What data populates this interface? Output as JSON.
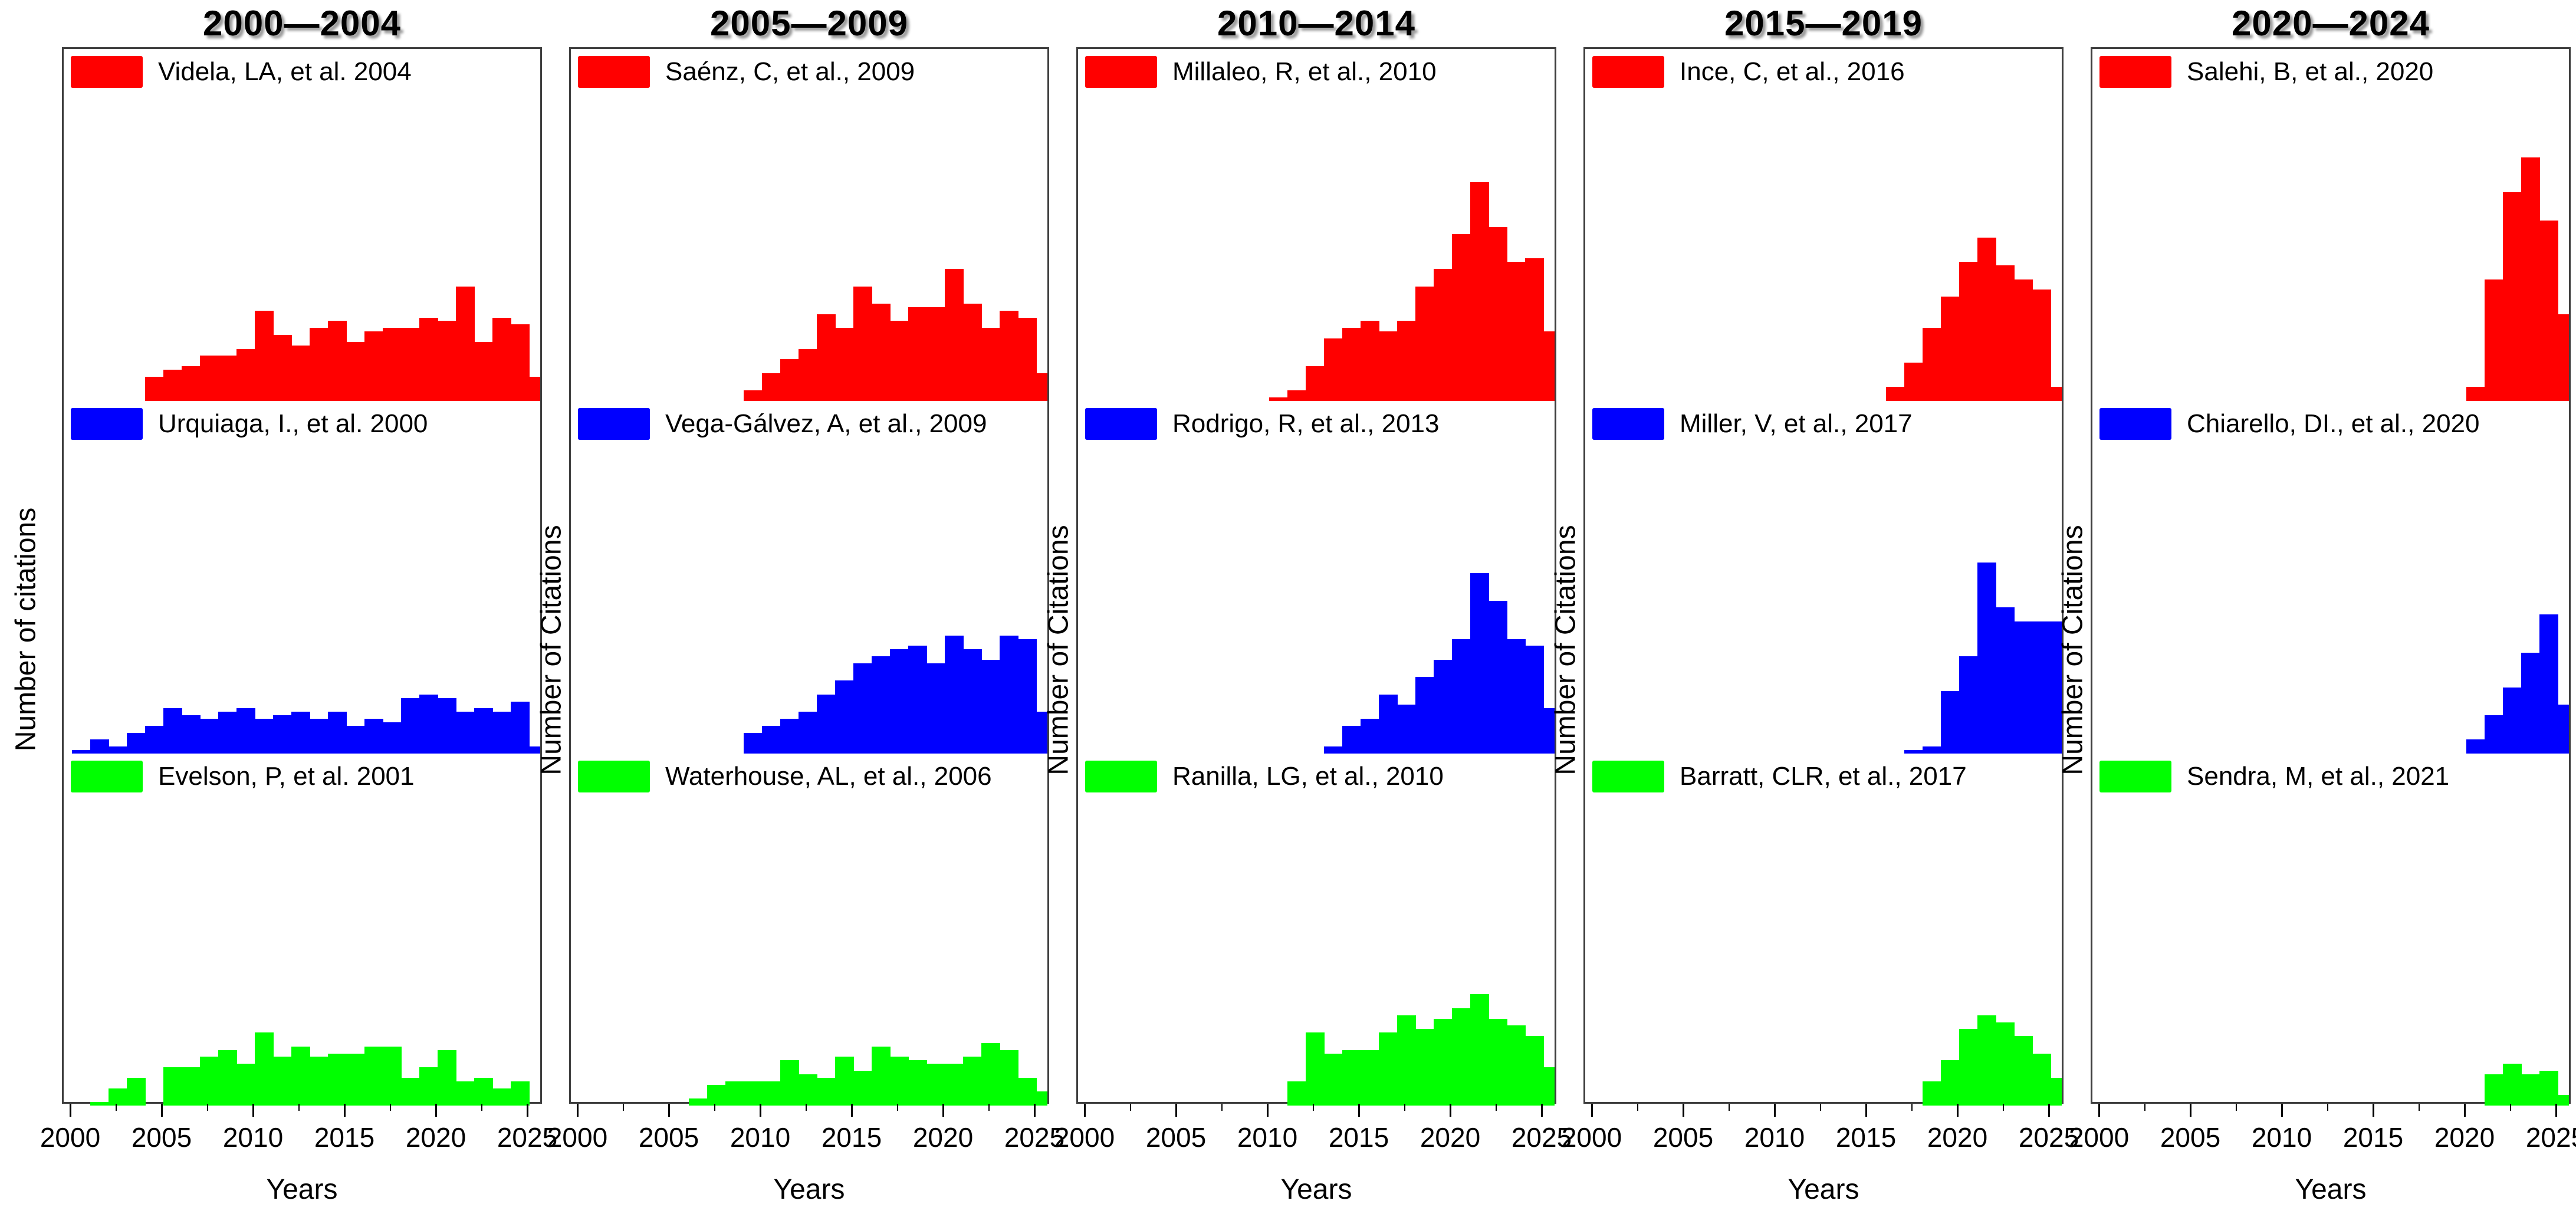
{
  "figure": {
    "background": "#ffffff",
    "border_color": "#3f3f3f"
  },
  "y_axis": {
    "main_label": "Number of citations",
    "column_label": "Number of Citations"
  },
  "x_axis": {
    "label": "Years",
    "ticks": [
      2000,
      2005,
      2010,
      2015,
      2020,
      2025
    ],
    "minor_ticks": [
      2002.5,
      2007.5,
      2012.5,
      2017.5,
      2022.5
    ],
    "range": [
      2000,
      2026
    ]
  },
  "colors": {
    "red": "#ff0000",
    "blue": "#0000ff",
    "green": "#00ff00"
  },
  "value_note": "Bar values are relative heights (fraction of subplot height); no numeric y-axis scale is shown in the figure.",
  "chart_data": [
    {
      "type": "bar",
      "period": "2000—2004",
      "xlabel": "Years",
      "x_range": [
        2000,
        2026
      ],
      "series": [
        {
          "name": "Videla, LA, et al. 2004",
          "color": "#ff0000",
          "start_year": 2004,
          "values": [
            0.07,
            0.09,
            0.1,
            0.13,
            0.13,
            0.15,
            0.26,
            0.19,
            0.16,
            0.21,
            0.23,
            0.17,
            0.2,
            0.21,
            0.21,
            0.24,
            0.23,
            0.33,
            0.17,
            0.24,
            0.22,
            0.07
          ]
        },
        {
          "name": "Urquiaga, I., et al. 2000",
          "color": "#0000ff",
          "start_year": 2000,
          "values": [
            0.01,
            0.04,
            0.02,
            0.06,
            0.08,
            0.13,
            0.11,
            0.1,
            0.12,
            0.13,
            0.1,
            0.11,
            0.12,
            0.1,
            0.12,
            0.08,
            0.1,
            0.09,
            0.16,
            0.17,
            0.16,
            0.12,
            0.13,
            0.12,
            0.15,
            0.02
          ]
        },
        {
          "name": "Evelson, P, et al. 2001",
          "color": "#00ff00",
          "start_year": 2001,
          "values": [
            0.01,
            0.05,
            0.08,
            0.0,
            0.11,
            0.11,
            0.14,
            0.16,
            0.12,
            0.21,
            0.14,
            0.17,
            0.14,
            0.15,
            0.15,
            0.17,
            0.17,
            0.08,
            0.11,
            0.16,
            0.07,
            0.08,
            0.05,
            0.07
          ]
        }
      ]
    },
    {
      "type": "bar",
      "period": "2005—2009",
      "xlabel": "Years",
      "x_range": [
        2000,
        2026
      ],
      "series": [
        {
          "name": "Saénz, C, et al., 2009",
          "color": "#ff0000",
          "start_year": 2009,
          "values": [
            0.03,
            0.08,
            0.12,
            0.15,
            0.25,
            0.21,
            0.33,
            0.28,
            0.23,
            0.27,
            0.27,
            0.38,
            0.28,
            0.21,
            0.26,
            0.24,
            0.08
          ]
        },
        {
          "name": "Vega-Gálvez, A, et al., 2009",
          "color": "#0000ff",
          "start_year": 2009,
          "values": [
            0.06,
            0.08,
            0.1,
            0.12,
            0.17,
            0.21,
            0.26,
            0.28,
            0.3,
            0.31,
            0.26,
            0.34,
            0.3,
            0.27,
            0.34,
            0.33,
            0.12
          ]
        },
        {
          "name": "Waterhouse, AL, et al., 2006",
          "color": "#00ff00",
          "start_year": 2006,
          "values": [
            0.02,
            0.06,
            0.07,
            0.07,
            0.07,
            0.13,
            0.09,
            0.08,
            0.14,
            0.1,
            0.17,
            0.14,
            0.13,
            0.12,
            0.12,
            0.14,
            0.18,
            0.16,
            0.08,
            0.04
          ]
        }
      ]
    },
    {
      "type": "bar",
      "period": "2010—2014",
      "xlabel": "Years",
      "x_range": [
        2000,
        2026
      ],
      "series": [
        {
          "name": "Millaleo, R, et al., 2010",
          "color": "#ff0000",
          "start_year": 2010,
          "values": [
            0.01,
            0.03,
            0.1,
            0.18,
            0.21,
            0.23,
            0.2,
            0.23,
            0.33,
            0.38,
            0.48,
            0.63,
            0.5,
            0.4,
            0.41,
            0.2
          ]
        },
        {
          "name": "Rodrigo, R, et al., 2013",
          "color": "#0000ff",
          "start_year": 2013,
          "values": [
            0.02,
            0.08,
            0.1,
            0.17,
            0.14,
            0.22,
            0.27,
            0.33,
            0.52,
            0.44,
            0.33,
            0.31,
            0.13
          ]
        },
        {
          "name": "Ranilla, LG, et al., 2010",
          "color": "#00ff00",
          "start_year": 2011,
          "values": [
            0.07,
            0.21,
            0.15,
            0.16,
            0.16,
            0.21,
            0.26,
            0.22,
            0.25,
            0.28,
            0.32,
            0.25,
            0.23,
            0.2,
            0.11
          ]
        }
      ]
    },
    {
      "type": "bar",
      "period": "2015—2019",
      "xlabel": "Years",
      "x_range": [
        2000,
        2026
      ],
      "series": [
        {
          "name": "Ince, C, et al., 2016",
          "color": "#ff0000",
          "start_year": 2016,
          "values": [
            0.04,
            0.11,
            0.21,
            0.3,
            0.4,
            0.47,
            0.39,
            0.35,
            0.32,
            0.04
          ]
        },
        {
          "name": "Miller, V, et al., 2017",
          "color": "#0000ff",
          "start_year": 2017,
          "values": [
            0.01,
            0.02,
            0.18,
            0.28,
            0.55,
            0.42,
            0.38,
            0.38,
            0.38
          ]
        },
        {
          "name": "Barratt, CLR, et al., 2017",
          "color": "#00ff00",
          "start_year": 2018,
          "values": [
            0.07,
            0.13,
            0.22,
            0.26,
            0.24,
            0.2,
            0.15,
            0.08
          ]
        }
      ]
    },
    {
      "type": "bar",
      "period": "2020—2024",
      "xlabel": "Years",
      "x_range": [
        2000,
        2026
      ],
      "series": [
        {
          "name": "Salehi, B, et al., 2020",
          "color": "#ff0000",
          "start_year": 2020,
          "values": [
            0.04,
            0.35,
            0.6,
            0.7,
            0.52,
            0.25
          ]
        },
        {
          "name": "Chiarello, DI., et al., 2020",
          "color": "#0000ff",
          "start_year": 2020,
          "values": [
            0.04,
            0.11,
            0.19,
            0.29,
            0.4,
            0.14
          ]
        },
        {
          "name": "Sendra, M, et al., 2021",
          "color": "#00ff00",
          "start_year": 2021,
          "values": [
            0.09,
            0.12,
            0.09,
            0.1,
            0.03
          ]
        }
      ]
    }
  ]
}
